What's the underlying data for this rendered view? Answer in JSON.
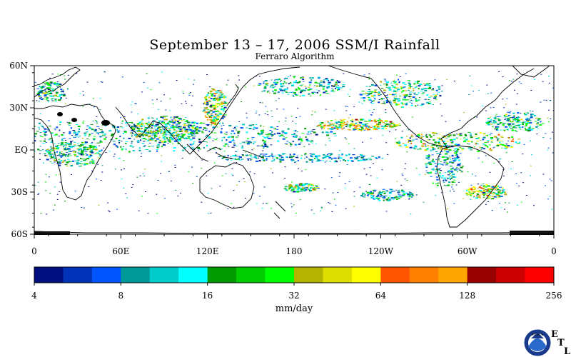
{
  "title": "September 13 – 17, 2006 SSM/I Rainfall",
  "subtitle": "Ferraro Algorithm",
  "map": {
    "lat_labels": [
      "60N",
      "30N",
      "EQ",
      "30S",
      "60S"
    ],
    "lon_labels": [
      "0",
      "60E",
      "120E",
      "180",
      "120W",
      "60W",
      "0"
    ],
    "ocean_color": "#ffffff",
    "coastline_color": "#000000"
  },
  "colorbar": {
    "unit_label": "mm/day",
    "tick_labels": [
      "4",
      "8",
      "16",
      "32",
      "64",
      "128",
      "256"
    ],
    "colors": [
      "#000f80",
      "#0033b8",
      "#0055ff",
      "#009999",
      "#00cccc",
      "#00ffff",
      "#009900",
      "#00cc00",
      "#00ff00",
      "#b3b300",
      "#dddd00",
      "#ffff00",
      "#ff5500",
      "#ff8000",
      "#ffa500",
      "#990000",
      "#cc0000",
      "#ff0000"
    ]
  },
  "logo": {
    "name": "NOAA",
    "letters": [
      "E",
      "T",
      "L"
    ]
  }
}
